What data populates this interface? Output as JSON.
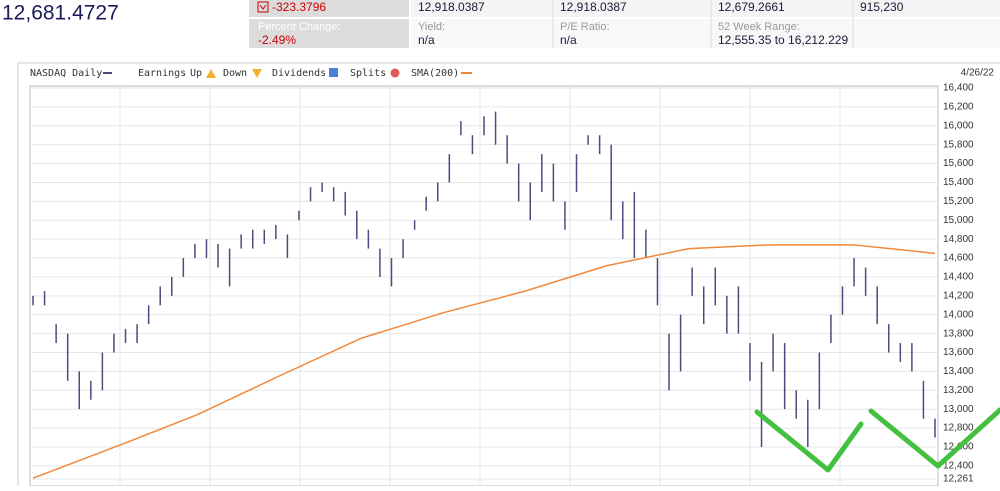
{
  "quote": {
    "last": "12,681.4727",
    "change": "-323.3796",
    "open": "12,918.0387",
    "prev_close": "12,918.0387",
    "low": "12,679.2661",
    "volume": "915,230",
    "percent_change_label": "Percent Change:",
    "percent_change": "-2.49%",
    "yield_label": "Yield:",
    "yield": "n/a",
    "pe_label": "P/E Ratio:",
    "pe": "n/a",
    "range_label": "52 Week Range:",
    "range": "12,555.35 to 16,212.229"
  },
  "chart_data": {
    "type": "hilo",
    "date": "4/26/22",
    "legend": {
      "earnings": "Earnings",
      "up": "Up",
      "down": "Down",
      "dividends": "Dividends",
      "splits": "Splits"
    },
    "series": [
      {
        "name": "NASDAQ Daily",
        "color": "#4b4b7d",
        "high": [
          14200,
          14250,
          13900,
          13800,
          13400,
          13300,
          13600,
          13800,
          13850,
          13900,
          14100,
          14300,
          14400,
          14600,
          14750,
          14800,
          14750,
          14700,
          14850,
          14900,
          14900,
          14950,
          14850,
          15100,
          15350,
          15400,
          15350,
          15300,
          15100,
          14900,
          14700,
          14600,
          14800,
          15000,
          15250,
          15400,
          15700,
          16050,
          15900,
          16100,
          16150,
          15900,
          15600,
          15400,
          15700,
          15600,
          15200,
          15700,
          15900,
          15900,
          15800,
          15200,
          15300,
          14900,
          14600,
          13800,
          14000,
          14500,
          14300,
          14500,
          14200,
          14300,
          13700,
          13500,
          13800,
          13700,
          13200,
          13100,
          13600,
          14000,
          14300,
          14600,
          14500,
          14300,
          13900,
          13700,
          13700,
          13300,
          12900
        ],
        "low": [
          14100,
          14100,
          13700,
          13300,
          13000,
          13100,
          13200,
          13600,
          13700,
          13700,
          13900,
          14100,
          14200,
          14400,
          14600,
          14600,
          14500,
          14300,
          14700,
          14700,
          14750,
          14800,
          14600,
          15000,
          15200,
          15300,
          15200,
          15050,
          14800,
          14700,
          14400,
          14300,
          14600,
          14900,
          15100,
          15200,
          15400,
          15900,
          15700,
          15900,
          15800,
          15600,
          15200,
          15000,
          15300,
          15200,
          14900,
          15300,
          15800,
          15700,
          15000,
          14800,
          14600,
          14600,
          14100,
          13200,
          13400,
          14200,
          13900,
          14100,
          13800,
          13800,
          13300,
          12600,
          13400,
          13000,
          12900,
          12600,
          13000,
          13700,
          14000,
          14300,
          14200,
          13900,
          13600,
          13500,
          13400,
          12900,
          12700
        ]
      },
      {
        "name": "SMA(200)",
        "color": "#f0883c",
        "values": [
          12270,
          12600,
          12940,
          13350,
          13750,
          14020,
          14250,
          14520,
          14700,
          14740,
          14740,
          14650
        ]
      }
    ],
    "ylim": [
      12261,
      16400
    ],
    "yticks": [
      {
        "value": 12261,
        "label": "12,261"
      },
      {
        "value": 12400,
        "label": "12,400"
      },
      {
        "value": 12600,
        "label": "12,600"
      },
      {
        "value": 12800,
        "label": "12,800"
      },
      {
        "value": 13000,
        "label": "13,000"
      },
      {
        "value": 13200,
        "label": "13,200"
      },
      {
        "value": 13400,
        "label": "13,400"
      },
      {
        "value": 13600,
        "label": "13,600"
      },
      {
        "value": 13800,
        "label": "13,800"
      },
      {
        "value": 14000,
        "label": "14,000"
      },
      {
        "value": 14200,
        "label": "14,200"
      },
      {
        "value": 14400,
        "label": "14,400"
      },
      {
        "value": 14600,
        "label": "14,600"
      },
      {
        "value": 14800,
        "label": "14,800"
      },
      {
        "value": 15000,
        "label": "15,000"
      },
      {
        "value": 15200,
        "label": "15,200"
      },
      {
        "value": 15400,
        "label": "15,400"
      },
      {
        "value": 15600,
        "label": "15,600"
      },
      {
        "value": 15800,
        "label": "15,800"
      },
      {
        "value": 16000,
        "label": "16,000"
      },
      {
        "value": 16200,
        "label": "16,200"
      },
      {
        "value": 16400,
        "label": "16,400"
      }
    ],
    "grid": true
  }
}
